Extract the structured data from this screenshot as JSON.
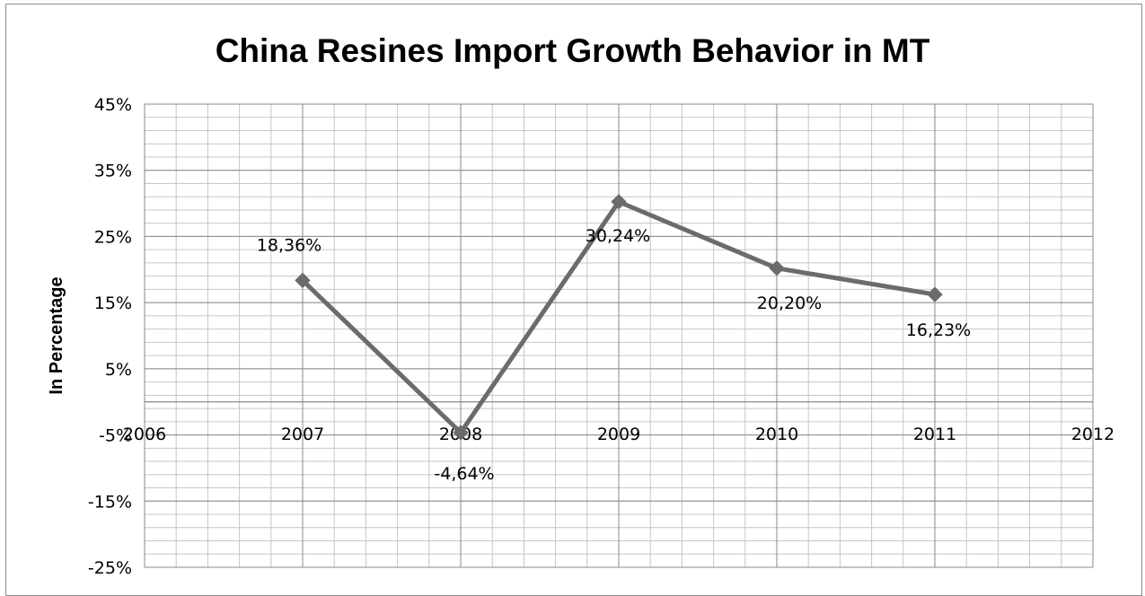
{
  "chart_data": {
    "type": "line",
    "title": "China Resines Import Growth Behavior in MT",
    "xlabel": "",
    "ylabel": "In Percentage",
    "x": [
      2007,
      2008,
      2009,
      2010,
      2011
    ],
    "xlim": [
      2006,
      2012
    ],
    "xticks": [
      "2006",
      "2007",
      "2008",
      "2009",
      "2010",
      "2011",
      "2012"
    ],
    "ylim": [
      -25,
      45
    ],
    "yticks": [
      "45%",
      "35%",
      "25%",
      "15%",
      "5%",
      "-5%",
      "-15%",
      "-25%"
    ],
    "series": [
      {
        "values": [
          18.36,
          -4.64,
          30.24,
          20.2,
          16.23
        ],
        "labels": [
          "18,36%",
          "-4,64%",
          "30,24%",
          "20,20%",
          "16,23%"
        ],
        "color": "#6b6b6b",
        "marker": "diamond"
      }
    ],
    "grid": true,
    "legend": "none"
  }
}
